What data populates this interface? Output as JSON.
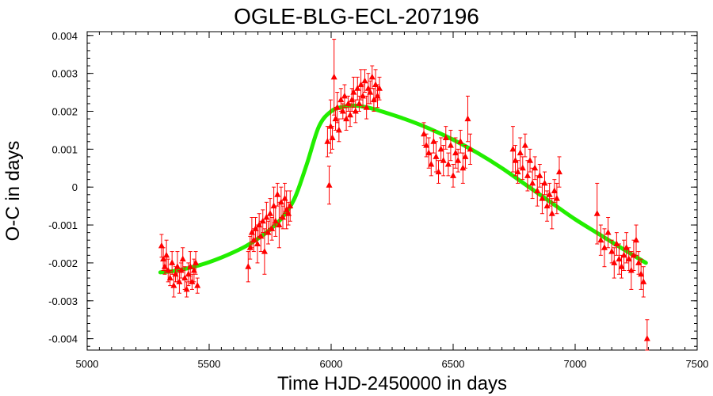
{
  "chart_data": {
    "type": "scatter",
    "title": "OGLE-BLG-ECL-207196",
    "xlabel": "Time HJD-2450000 in days",
    "ylabel": "O-C in days",
    "xlim": [
      5000,
      7500
    ],
    "ylim": [
      -0.0043,
      0.0041
    ],
    "xticks": [
      5000,
      5500,
      6000,
      6500,
      7000,
      7500
    ],
    "xtick_labels": [
      "5000",
      "5500",
      "6000",
      "6500",
      "7000",
      "7500"
    ],
    "yticks": [
      -0.004,
      -0.003,
      -0.002,
      -0.001,
      0,
      0.001,
      0.002,
      0.003,
      0.004
    ],
    "ytick_labels": [
      "-0.004",
      "-0.003",
      "-0.002",
      "-0.001",
      "0",
      "0.001",
      "0.002",
      "0.003",
      "0.004"
    ],
    "grid": false,
    "colors": {
      "points": "#ff0000",
      "model": "#22ee00"
    },
    "series": [
      {
        "kind": "points",
        "x": [
          5305,
          5312,
          5318,
          5325,
          5332,
          5340,
          5348,
          5355,
          5362,
          5370,
          5378,
          5385,
          5392,
          5400,
          5408,
          5415,
          5423,
          5430,
          5438,
          5445,
          5452,
          5660,
          5668,
          5675,
          5683,
          5690,
          5698,
          5705,
          5712,
          5720,
          5727,
          5735,
          5742,
          5750,
          5757,
          5765,
          5772,
          5780,
          5787,
          5795,
          5802,
          5810,
          5817,
          5825,
          5832,
          5985,
          5992,
          5998,
          6005,
          6012,
          6018,
          6025,
          6032,
          6040,
          6048,
          6055,
          6062,
          6070,
          6078,
          6085,
          6092,
          6100,
          6108,
          6115,
          6122,
          6130,
          6138,
          6145,
          6152,
          6160,
          6168,
          6175,
          6182,
          6190,
          6198,
          6380,
          6390,
          6400,
          6410,
          6420,
          6430,
          6440,
          6450,
          6460,
          6470,
          6480,
          6490,
          6500,
          6510,
          6520,
          6530,
          6540,
          6550,
          6560,
          6570,
          6745,
          6755,
          6765,
          6775,
          6785,
          6795,
          6805,
          6815,
          6825,
          6835,
          6845,
          6855,
          6865,
          6875,
          6885,
          6895,
          6905,
          6915,
          6925,
          6935,
          7090,
          7105,
          7120,
          7135,
          7150,
          7160,
          7170,
          7180,
          7190,
          7200,
          7210,
          7220,
          7230,
          7240,
          7250,
          7260,
          7270,
          7280,
          7295
        ],
        "y": [
          -0.00155,
          -0.0019,
          -0.0021,
          -0.0018,
          -0.0022,
          -0.0024,
          -0.002,
          -0.0026,
          -0.0023,
          -0.0021,
          -0.0025,
          -0.0022,
          -0.0019,
          -0.0024,
          -0.0027,
          -0.0023,
          -0.0021,
          -0.0025,
          -0.0022,
          -0.002,
          -0.0026,
          -0.0021,
          -0.0016,
          -0.0012,
          -0.0014,
          -0.0011,
          -0.0015,
          -0.001,
          -0.0013,
          -0.0009,
          -0.0017,
          -0.0008,
          -0.0012,
          -0.0007,
          -0.0011,
          -0.0005,
          -0.0009,
          -0.0002,
          -0.001,
          -0.0004,
          -0.0008,
          -0.0003,
          -0.0006,
          -0.0007,
          -0.0005,
          0.0012,
          5e-05,
          0.0016,
          0.0013,
          0.0029,
          0.0018,
          0.0021,
          0.0015,
          0.0023,
          0.002,
          0.0024,
          0.0018,
          0.0022,
          0.0019,
          0.0023,
          0.0025,
          0.002,
          0.0026,
          0.0022,
          0.0027,
          0.0024,
          0.0028,
          0.0021,
          0.0026,
          0.0025,
          0.0029,
          0.0023,
          0.0027,
          0.0024,
          0.0026,
          0.0014,
          0.0011,
          0.0009,
          0.0006,
          0.0012,
          0.0008,
          0.0004,
          0.001,
          0.0007,
          0.0013,
          0.0006,
          0.0011,
          0.0003,
          0.0009,
          0.0007,
          0.0012,
          0.0005,
          0.0008,
          0.0018,
          0.001,
          0.001,
          0.0007,
          0.0004,
          0.0009,
          0.0005,
          0.0011,
          0.0003,
          0.0007,
          0.0001,
          0.0005,
          -0.0001,
          0.0003,
          -0.0003,
          0.0001,
          -0.0005,
          -0.0002,
          -0.0007,
          -0.0001,
          -0.0003,
          0.0004,
          -0.0007,
          -0.0014,
          -0.0016,
          -0.0012,
          -0.0017,
          -0.002,
          -0.0015,
          -0.0019,
          -0.0021,
          -0.0018,
          -0.0016,
          -0.0019,
          -0.0022,
          -0.0018,
          -0.0014,
          -0.002,
          -0.0023,
          -0.0025,
          -0.004
        ],
        "yerr": [
          0.0003,
          0.0003,
          0.0002,
          0.0004,
          0.0003,
          0.0002,
          0.0003,
          0.0003,
          0.0002,
          0.0004,
          0.0003,
          0.0002,
          0.0003,
          0.0003,
          0.0002,
          0.0003,
          0.0004,
          0.0002,
          0.0003,
          0.0003,
          0.0002,
          0.0004,
          0.0003,
          0.0004,
          0.0003,
          0.0003,
          0.0005,
          0.0003,
          0.0004,
          0.0003,
          0.0006,
          0.0004,
          0.0003,
          0.0004,
          0.0003,
          0.0005,
          0.0004,
          0.0003,
          0.0006,
          0.0004,
          0.0003,
          0.0004,
          0.0005,
          0.0003,
          0.0004,
          0.0004,
          0.0005,
          0.0007,
          0.0003,
          0.001,
          0.0003,
          0.0004,
          0.0003,
          0.0003,
          0.0002,
          0.0003,
          0.0003,
          0.0002,
          0.0003,
          0.0003,
          0.0004,
          0.0003,
          0.0003,
          0.0002,
          0.0004,
          0.0003,
          0.0003,
          0.0003,
          0.0004,
          0.0003,
          0.0003,
          0.0003,
          0.0004,
          0.0003,
          0.0003,
          0.0003,
          0.0003,
          0.0004,
          0.0003,
          0.0003,
          0.0004,
          0.0003,
          0.0003,
          0.0004,
          0.0003,
          0.0003,
          0.0004,
          0.0003,
          0.0004,
          0.0003,
          0.0003,
          0.0004,
          0.0003,
          0.0006,
          0.0004,
          0.0006,
          0.0004,
          0.0003,
          0.0004,
          0.0003,
          0.0003,
          0.0004,
          0.0003,
          0.0004,
          0.0003,
          0.0004,
          0.0003,
          0.0004,
          0.0003,
          0.0004,
          0.0003,
          0.0004,
          0.0003,
          0.0004,
          0.0004,
          0.0008,
          0.0004,
          0.0005,
          0.0004,
          0.0003,
          0.0004,
          0.0003,
          0.0004,
          0.0003,
          0.0004,
          0.0004,
          0.0003,
          0.0005,
          0.0004,
          0.0004,
          0.0003,
          0.0004,
          0.0004,
          0.0005
        ]
      },
      {
        "kind": "model",
        "x": [
          5300,
          5350,
          5400,
          5450,
          5500,
          5550,
          5600,
          5650,
          5700,
          5750,
          5800,
          5850,
          5900,
          5950,
          6000,
          6050,
          6100,
          6150,
          6200,
          6300,
          6400,
          6500,
          6600,
          6700,
          6800,
          6900,
          7000,
          7100,
          7200,
          7290
        ],
        "y": [
          -0.00225,
          -0.00222,
          -0.00216,
          -0.00208,
          -0.00198,
          -0.00186,
          -0.00172,
          -0.00156,
          -0.00136,
          -0.00112,
          -0.0008,
          -0.0003,
          0.0006,
          0.0016,
          0.002,
          0.00212,
          0.00215,
          0.0021,
          0.00201,
          0.0018,
          0.00155,
          0.00125,
          0.0009,
          0.0005,
          5e-05,
          -0.0004,
          -0.00085,
          -0.00125,
          -0.00165,
          -0.002
        ]
      }
    ]
  }
}
